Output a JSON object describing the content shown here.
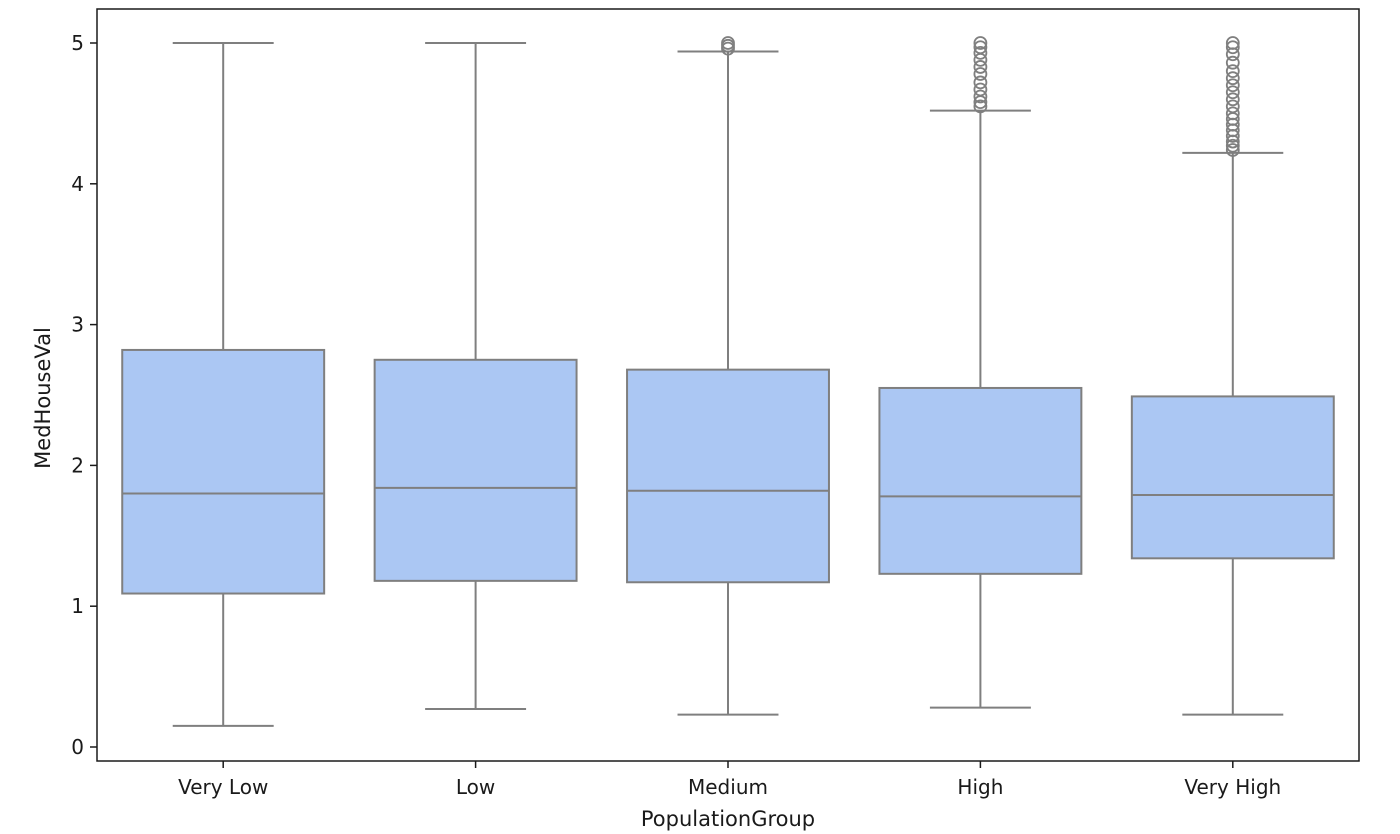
{
  "chart_data": {
    "type": "box",
    "xlabel": "PopulationGroup",
    "ylabel": "MedHouseVal",
    "ylim": [
      -0.1,
      5.25
    ],
    "yticks": [
      0,
      1,
      2,
      3,
      4,
      5
    ],
    "categories": [
      "Very Low",
      "Low",
      "Medium",
      "High",
      "Very High"
    ],
    "boxes": [
      {
        "category": "Very Low",
        "whisker_low": 0.15,
        "q1": 1.09,
        "median": 1.8,
        "q3": 2.82,
        "whisker_high": 5.0,
        "outliers": []
      },
      {
        "category": "Low",
        "whisker_low": 0.27,
        "q1": 1.18,
        "median": 1.84,
        "q3": 2.75,
        "whisker_high": 5.0,
        "outliers": []
      },
      {
        "category": "Medium",
        "whisker_low": 0.23,
        "q1": 1.17,
        "median": 1.82,
        "q3": 2.68,
        "whisker_high": 4.94,
        "outliers": [
          4.96,
          4.98,
          5.0
        ]
      },
      {
        "category": "High",
        "whisker_low": 0.28,
        "q1": 1.23,
        "median": 1.78,
        "q3": 2.55,
        "whisker_high": 4.52,
        "outliers": [
          4.55,
          4.58,
          4.62,
          4.67,
          4.72,
          4.78,
          4.83,
          4.88,
          4.93,
          4.97,
          5.0
        ]
      },
      {
        "category": "Very High",
        "whisker_low": 0.23,
        "q1": 1.34,
        "median": 1.79,
        "q3": 2.49,
        "whisker_high": 4.22,
        "outliers": [
          4.24,
          4.27,
          4.3,
          4.34,
          4.38,
          4.42,
          4.46,
          4.5,
          4.55,
          4.6,
          4.65,
          4.7,
          4.75,
          4.8,
          4.86,
          4.92,
          4.97,
          5.0
        ]
      }
    ],
    "colors": {
      "box_fill": "#abc7f3",
      "box_edge": "#7f7f7f",
      "axis": "#1a1a1a"
    },
    "grid": false,
    "legend": "none"
  }
}
